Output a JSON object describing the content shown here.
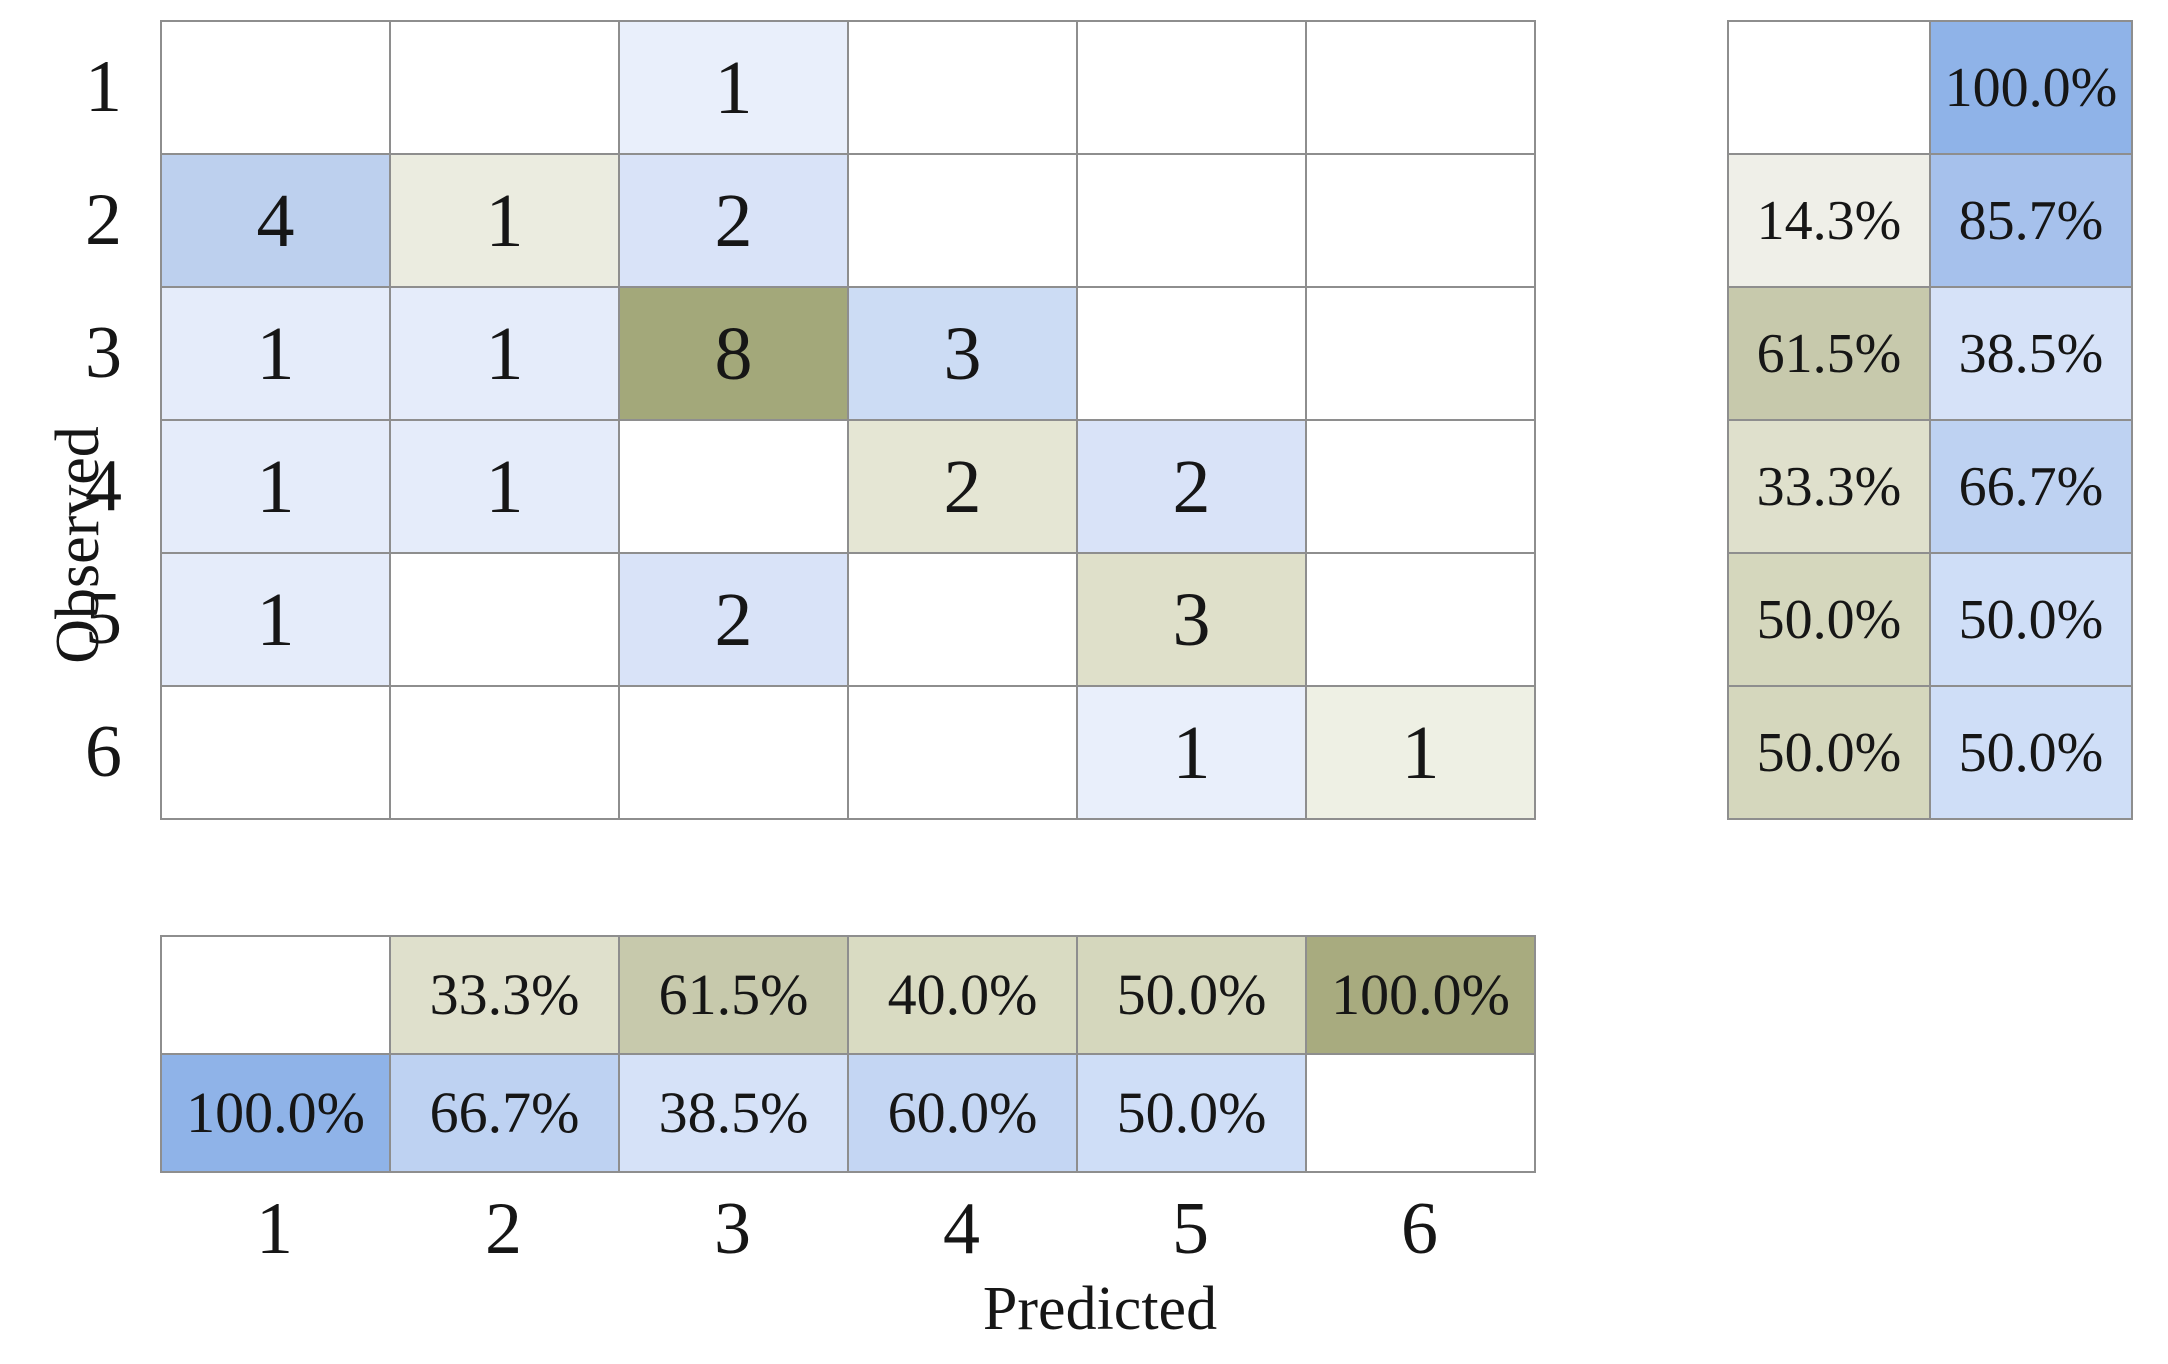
{
  "axis": {
    "y_label": "Observed",
    "x_label": "Predicted",
    "y_ticks": [
      "1",
      "2",
      "3",
      "4",
      "5",
      "6"
    ],
    "x_ticks": [
      "1",
      "2",
      "3",
      "4",
      "5",
      "6"
    ]
  },
  "colors": {
    "grid_line": "#8e8e8e",
    "text": "#161616",
    "correct_max_olive": "#a3a87a",
    "error_max_blue": "#8fb3e8",
    "background": "#ffffff"
  },
  "chart_data": {
    "type": "heatmap",
    "xlabel": "Predicted",
    "ylabel": "Observed",
    "categories": [
      "1",
      "2",
      "3",
      "4",
      "5",
      "6"
    ],
    "counts": [
      [
        null,
        null,
        1,
        null,
        null,
        null
      ],
      [
        4,
        1,
        2,
        null,
        null,
        null
      ],
      [
        1,
        1,
        8,
        3,
        null,
        null
      ],
      [
        1,
        1,
        null,
        2,
        2,
        null
      ],
      [
        1,
        null,
        2,
        null,
        3,
        null
      ],
      [
        null,
        null,
        null,
        null,
        1,
        1
      ]
    ],
    "row_summary_correct_pct": [
      null,
      14.3,
      61.5,
      33.3,
      50.0,
      50.0
    ],
    "row_summary_incorrect_pct": [
      100.0,
      85.7,
      38.5,
      66.7,
      50.0,
      50.0
    ],
    "column_summary_correct_pct": [
      null,
      33.3,
      61.5,
      40.0,
      50.0,
      100.0
    ],
    "column_summary_incorrect_pct": [
      100.0,
      66.7,
      38.5,
      60.0,
      50.0,
      null
    ],
    "grid": true,
    "legend_position": "none"
  },
  "grids": {
    "main": {
      "cols": 6,
      "cells": [
        {
          "t": "",
          "bg": "#ffffff"
        },
        {
          "t": "",
          "bg": "#ffffff"
        },
        {
          "t": "1",
          "bg": "#e9effb"
        },
        {
          "t": "",
          "bg": "#ffffff"
        },
        {
          "t": "",
          "bg": "#ffffff"
        },
        {
          "t": "",
          "bg": "#ffffff"
        },
        {
          "t": "4",
          "bg": "#bdd0ee"
        },
        {
          "t": "1",
          "bg": "#ebece0"
        },
        {
          "t": "2",
          "bg": "#d9e3f8"
        },
        {
          "t": "",
          "bg": "#ffffff"
        },
        {
          "t": "",
          "bg": "#ffffff"
        },
        {
          "t": "",
          "bg": "#ffffff"
        },
        {
          "t": "1",
          "bg": "#e5ecfa"
        },
        {
          "t": "1",
          "bg": "#e5ecfa"
        },
        {
          "t": "8",
          "bg": "#a3a87a"
        },
        {
          "t": "3",
          "bg": "#ccdcf4"
        },
        {
          "t": "",
          "bg": "#ffffff"
        },
        {
          "t": "",
          "bg": "#ffffff"
        },
        {
          "t": "1",
          "bg": "#e5ecfa"
        },
        {
          "t": "1",
          "bg": "#e5ecfa"
        },
        {
          "t": "",
          "bg": "#ffffff"
        },
        {
          "t": "2",
          "bg": "#e5e6d4"
        },
        {
          "t": "2",
          "bg": "#d9e3f8"
        },
        {
          "t": "",
          "bg": "#ffffff"
        },
        {
          "t": "1",
          "bg": "#e5ecfa"
        },
        {
          "t": "",
          "bg": "#ffffff"
        },
        {
          "t": "2",
          "bg": "#d9e3f8"
        },
        {
          "t": "",
          "bg": "#ffffff"
        },
        {
          "t": "3",
          "bg": "#dfe0ca"
        },
        {
          "t": "",
          "bg": "#ffffff"
        },
        {
          "t": "",
          "bg": "#ffffff"
        },
        {
          "t": "",
          "bg": "#ffffff"
        },
        {
          "t": "",
          "bg": "#ffffff"
        },
        {
          "t": "",
          "bg": "#ffffff"
        },
        {
          "t": "1",
          "bg": "#e9effb"
        },
        {
          "t": "1",
          "bg": "#eef0e4"
        }
      ]
    },
    "right": {
      "cols": 2,
      "cells": [
        {
          "t": "",
          "bg": "#ffffff"
        },
        {
          "t": "100.0%",
          "bg": "#8fb3e8"
        },
        {
          "t": "14.3%",
          "bg": "#efefe8"
        },
        {
          "t": "85.7%",
          "bg": "#a6c1ec"
        },
        {
          "t": "61.5%",
          "bg": "#c7c9ac"
        },
        {
          "t": "38.5%",
          "bg": "#d6e2f8"
        },
        {
          "t": "33.3%",
          "bg": "#dfe0cc"
        },
        {
          "t": "66.7%",
          "bg": "#bed2f2"
        },
        {
          "t": "50.0%",
          "bg": "#d5d7bd"
        },
        {
          "t": "50.0%",
          "bg": "#cfdef7"
        },
        {
          "t": "50.0%",
          "bg": "#d5d7bd"
        },
        {
          "t": "50.0%",
          "bg": "#cfdef7"
        }
      ]
    },
    "bottom": {
      "cols": 6,
      "cells": [
        {
          "t": "",
          "bg": "#ffffff"
        },
        {
          "t": "33.3%",
          "bg": "#dfe0cc"
        },
        {
          "t": "61.5%",
          "bg": "#c7c9ac"
        },
        {
          "t": "40.0%",
          "bg": "#d9dbc2"
        },
        {
          "t": "50.0%",
          "bg": "#d5d7bd"
        },
        {
          "t": "100.0%",
          "bg": "#a8ab7f"
        },
        {
          "t": "100.0%",
          "bg": "#8fb3e8"
        },
        {
          "t": "66.7%",
          "bg": "#bed2f2"
        },
        {
          "t": "38.5%",
          "bg": "#d6e2f8"
        },
        {
          "t": "60.0%",
          "bg": "#c4d6f3"
        },
        {
          "t": "50.0%",
          "bg": "#cfdef7"
        },
        {
          "t": "",
          "bg": "#ffffff"
        }
      ]
    }
  }
}
